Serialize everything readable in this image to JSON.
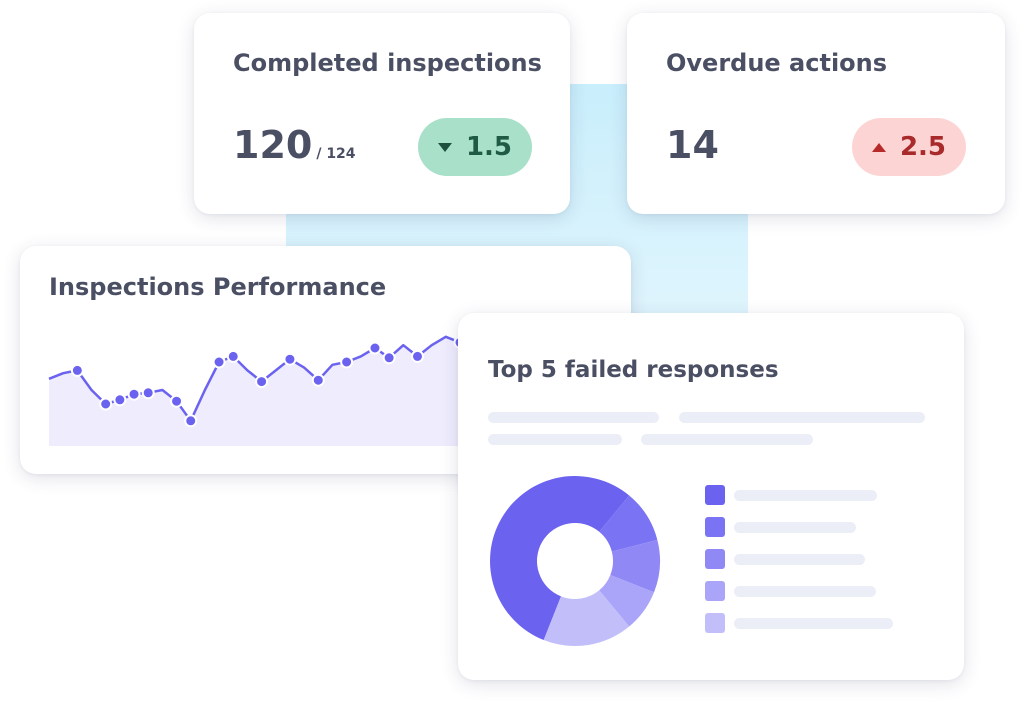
{
  "completed": {
    "title": "Completed inspections",
    "value": "120",
    "total": "/ 124",
    "change": "1.5",
    "change_direction": "down",
    "change_color": "#a8e0c9"
  },
  "overdue": {
    "title": "Overdue actions",
    "value": "14",
    "change": "2.5",
    "change_direction": "up",
    "change_color": "#fdd4d4"
  },
  "performance": {
    "title": "Inspections Performance",
    "accent": "#6b63f0"
  },
  "top_failed": {
    "title": "Top 5 failed responses",
    "legend_colors": [
      "#6b63f0",
      "#7a73f3",
      "#9089f5",
      "#aaa5f8",
      "#c2befa"
    ]
  },
  "chart_data": [
    {
      "type": "area",
      "title": "Inspections Performance",
      "x": [
        1,
        2,
        3,
        4,
        5,
        6,
        7,
        8,
        9,
        10,
        11,
        12,
        13,
        14,
        15,
        16,
        17,
        18,
        19,
        20,
        21,
        22,
        23,
        24,
        25,
        26,
        27,
        28,
        29,
        30
      ],
      "values": [
        48,
        52,
        54,
        40,
        30,
        33,
        37,
        38,
        40,
        32,
        18,
        40,
        60,
        64,
        54,
        46,
        54,
        62,
        56,
        47,
        58,
        60,
        64,
        70,
        63,
        72,
        64,
        72,
        78,
        74
      ],
      "marked_points": [
        2,
        4,
        5,
        6,
        7,
        9,
        10,
        12,
        13,
        15,
        17,
        19,
        21,
        23,
        24,
        26,
        29
      ],
      "ylim": [
        0,
        100
      ],
      "grid": false,
      "color": "#6b63f0"
    },
    {
      "type": "pie",
      "title": "Top 5 failed responses",
      "values": [
        55,
        10,
        10,
        8,
        17
      ],
      "colors": [
        "#6b63f0",
        "#7a73f3",
        "#9089f5",
        "#aaa5f8",
        "#c2befa"
      ],
      "donut": true
    }
  ]
}
